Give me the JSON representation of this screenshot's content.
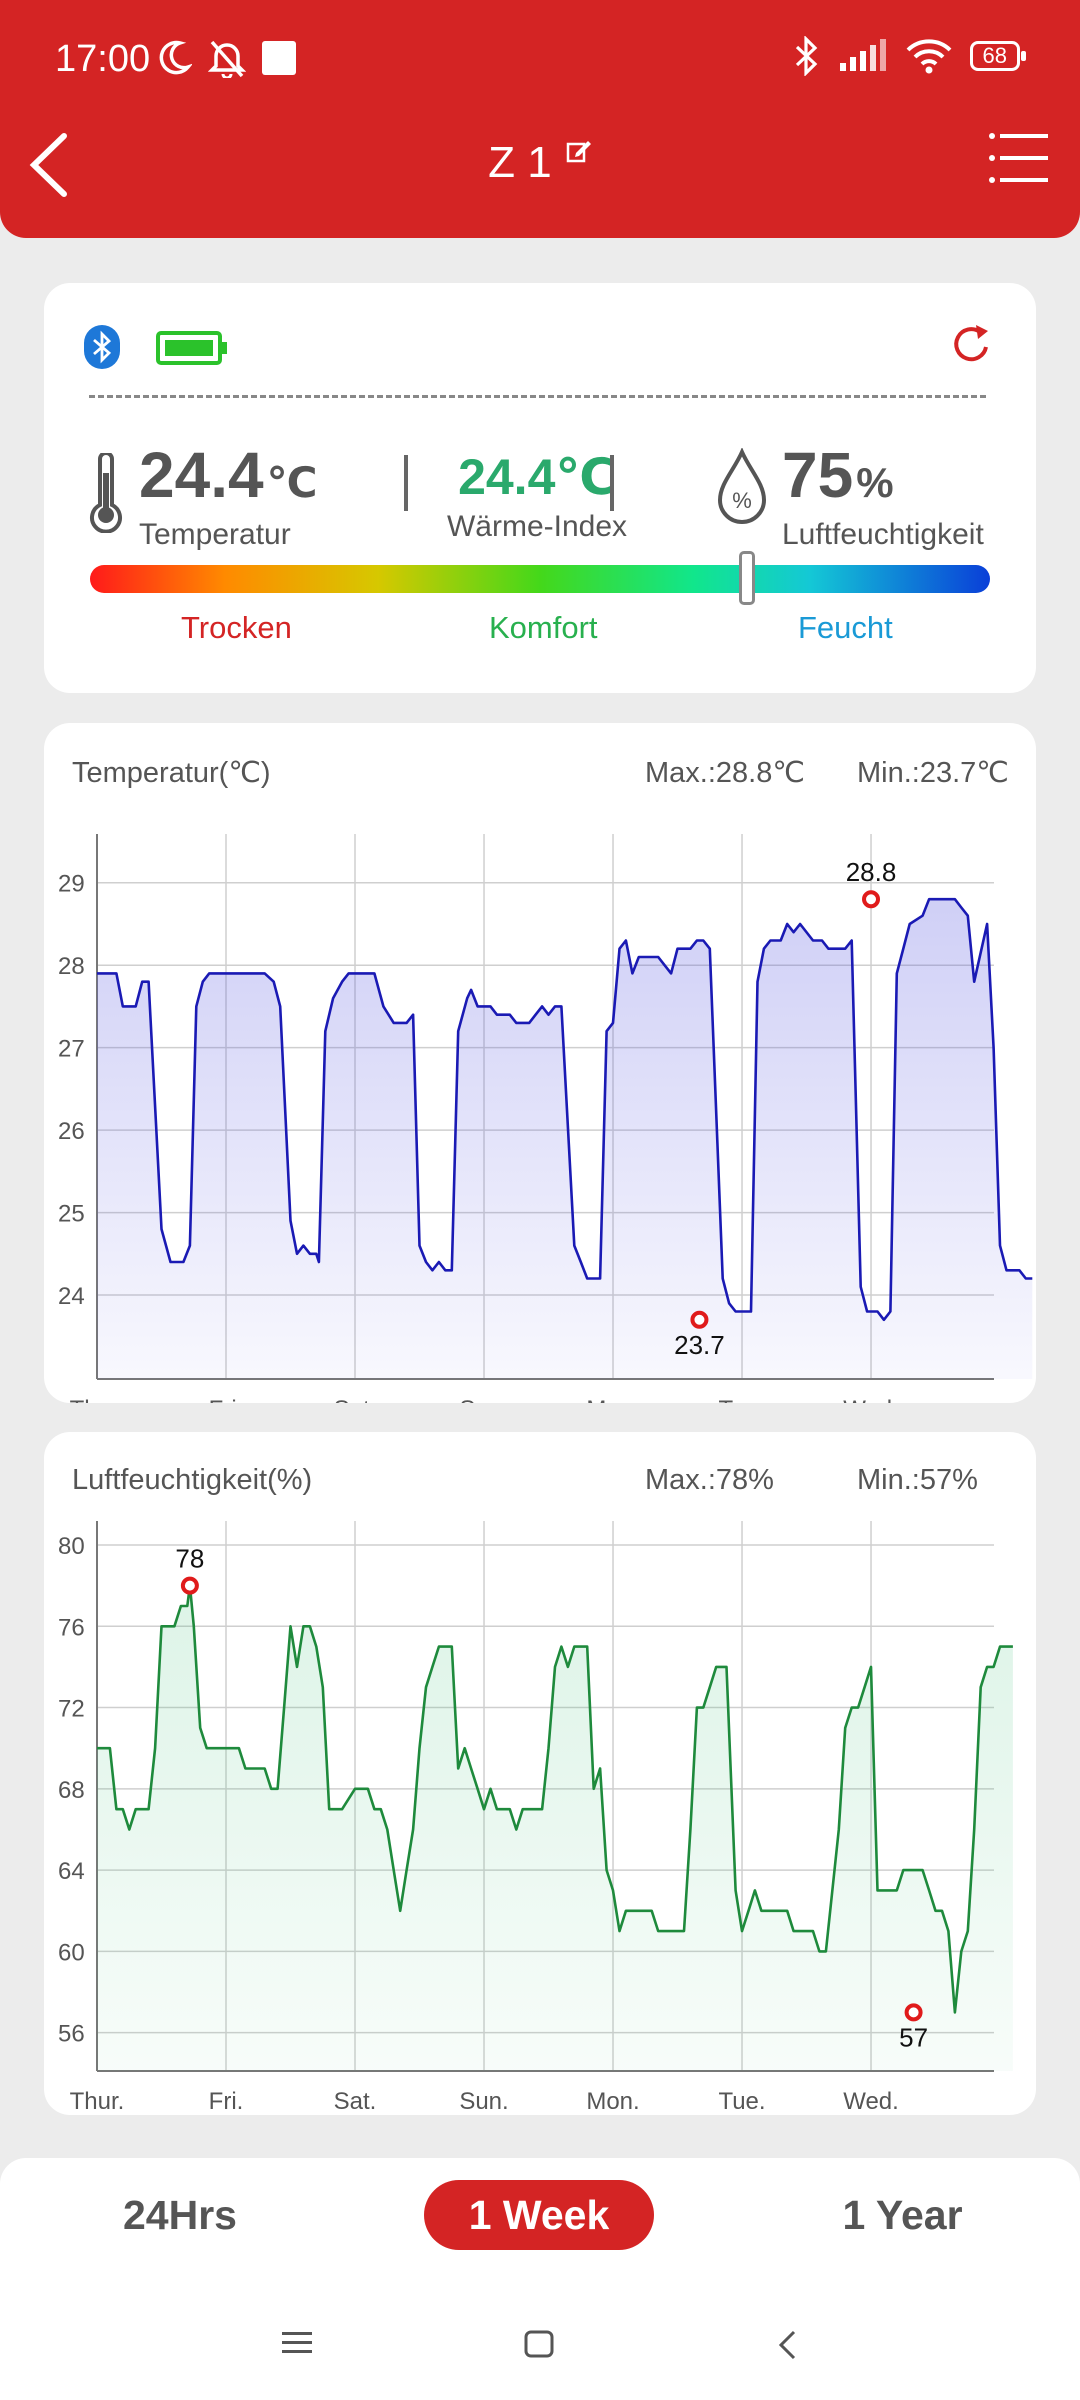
{
  "status_bar": {
    "time": "17:00",
    "battery": "68"
  },
  "header": {
    "title": "Z 1"
  },
  "current": {
    "temperature": "24.4",
    "temperature_unit": "℃",
    "temperature_label": "Temperatur",
    "heat_index": "24.4℃",
    "heat_index_label": "Wärme-Index",
    "humidity": "75",
    "humidity_unit": "%",
    "humidity_label": "Luftfeuchtigkeit",
    "comfort_level_fraction": 0.73,
    "zones": {
      "dry": "Trocken",
      "comfort": "Komfort",
      "wet": "Feucht"
    }
  },
  "colors": {
    "accent": "#d42424",
    "temp_line": "#1a1ab4",
    "hum_line": "#1e8a3c",
    "heat_index": "#2aa96c"
  },
  "chart_data": [
    {
      "type": "area",
      "title": "Temperatur(℃)",
      "max_label": "Max.:28.8℃",
      "min_label": "Min.:23.7℃",
      "categories": [
        "Thur.",
        "Fri.",
        "Sat.",
        "Sun.",
        "Mon.",
        "Tue.",
        "Wed."
      ],
      "y_ticks": [
        "29",
        "28",
        "27",
        "26",
        "25",
        "24"
      ],
      "ylim": [
        23.2,
        29.3
      ],
      "x_range": [
        0,
        7
      ],
      "grid": true,
      "series": [
        {
          "points": [
            [
              0,
              27.9
            ],
            [
              0.15,
              27.9
            ],
            [
              0.2,
              27.5
            ],
            [
              0.3,
              27.5
            ],
            [
              0.35,
              27.8
            ],
            [
              0.4,
              27.8
            ],
            [
              0.5,
              24.8
            ],
            [
              0.57,
              24.4
            ],
            [
              0.67,
              24.4
            ],
            [
              0.72,
              24.6
            ],
            [
              0.77,
              27.5
            ],
            [
              0.82,
              27.8
            ],
            [
              0.87,
              27.9
            ],
            [
              1.0,
              27.9
            ],
            [
              1.3,
              27.9
            ],
            [
              1.37,
              27.8
            ],
            [
              1.42,
              27.5
            ],
            [
              1.5,
              24.9
            ],
            [
              1.55,
              24.5
            ],
            [
              1.6,
              24.6
            ],
            [
              1.65,
              24.5
            ],
            [
              1.7,
              24.5
            ],
            [
              1.72,
              24.4
            ],
            [
              1.77,
              27.2
            ],
            [
              1.83,
              27.6
            ],
            [
              1.9,
              27.8
            ],
            [
              1.95,
              27.9
            ],
            [
              2.15,
              27.9
            ],
            [
              2.22,
              27.5
            ],
            [
              2.3,
              27.3
            ],
            [
              2.4,
              27.3
            ],
            [
              2.45,
              27.4
            ],
            [
              2.5,
              24.6
            ],
            [
              2.55,
              24.4
            ],
            [
              2.6,
              24.3
            ],
            [
              2.65,
              24.4
            ],
            [
              2.7,
              24.3
            ],
            [
              2.75,
              24.3
            ],
            [
              2.8,
              27.2
            ],
            [
              2.87,
              27.6
            ],
            [
              2.9,
              27.7
            ],
            [
              2.95,
              27.5
            ],
            [
              3.05,
              27.5
            ],
            [
              3.1,
              27.4
            ],
            [
              3.2,
              27.4
            ],
            [
              3.25,
              27.3
            ],
            [
              3.35,
              27.3
            ],
            [
              3.4,
              27.4
            ],
            [
              3.45,
              27.5
            ],
            [
              3.5,
              27.4
            ],
            [
              3.55,
              27.5
            ],
            [
              3.6,
              27.5
            ],
            [
              3.7,
              24.6
            ],
            [
              3.75,
              24.4
            ],
            [
              3.8,
              24.2
            ],
            [
              3.9,
              24.2
            ],
            [
              3.95,
              27.2
            ],
            [
              4.0,
              27.3
            ],
            [
              4.05,
              28.2
            ],
            [
              4.1,
              28.3
            ],
            [
              4.15,
              27.9
            ],
            [
              4.2,
              28.1
            ],
            [
              4.35,
              28.1
            ],
            [
              4.4,
              28.0
            ],
            [
              4.45,
              27.9
            ],
            [
              4.5,
              28.2
            ],
            [
              4.6,
              28.2
            ],
            [
              4.65,
              28.3
            ],
            [
              4.7,
              28.3
            ],
            [
              4.75,
              28.2
            ],
            [
              4.85,
              24.2
            ],
            [
              4.9,
              23.9
            ],
            [
              4.95,
              23.8
            ],
            [
              5.07,
              23.8
            ],
            [
              5.12,
              27.8
            ],
            [
              5.17,
              28.2
            ],
            [
              5.22,
              28.3
            ],
            [
              5.3,
              28.3
            ],
            [
              5.35,
              28.5
            ],
            [
              5.4,
              28.4
            ],
            [
              5.45,
              28.5
            ],
            [
              5.55,
              28.3
            ],
            [
              5.62,
              28.3
            ],
            [
              5.67,
              28.2
            ],
            [
              5.8,
              28.2
            ],
            [
              5.85,
              28.3
            ],
            [
              5.92,
              24.1
            ],
            [
              5.97,
              23.8
            ],
            [
              6.05,
              23.8
            ],
            [
              6.1,
              23.7
            ],
            [
              6.15,
              23.8
            ],
            [
              6.2,
              27.9
            ],
            [
              6.25,
              28.2
            ],
            [
              6.3,
              28.5
            ],
            [
              6.4,
              28.6
            ],
            [
              6.45,
              28.8
            ],
            [
              6.65,
              28.8
            ],
            [
              6.7,
              28.7
            ],
            [
              6.75,
              28.6
            ],
            [
              6.8,
              27.8
            ],
            [
              6.9,
              28.5
            ],
            [
              6.95,
              27.0
            ],
            [
              7.0,
              24.6
            ],
            [
              7.05,
              24.3
            ],
            [
              7.1,
              24.3
            ],
            [
              7.15,
              24.3
            ],
            [
              7.2,
              24.2
            ],
            [
              7.25,
              24.2
            ]
          ]
        }
      ],
      "annotations": [
        {
          "label": "28.8",
          "x": 6.0,
          "y": 28.8,
          "type": "max"
        },
        {
          "label": "23.7",
          "x": 4.67,
          "y": 23.7,
          "type": "min"
        }
      ]
    },
    {
      "type": "area",
      "title": "Luftfeuchtigkeit(%)",
      "max_label": "Max.:78%",
      "min_label": "Min.:57%",
      "categories": [
        "Thur.",
        "Fri.",
        "Sat.",
        "Sun.",
        "Mon.",
        "Tue.",
        "Wed."
      ],
      "y_ticks": [
        "80",
        "76",
        "72",
        "68",
        "64",
        "60",
        "56"
      ],
      "ylim": [
        55,
        80
      ],
      "x_range": [
        0,
        7
      ],
      "grid": true,
      "series": [
        {
          "points": [
            [
              0,
              70
            ],
            [
              0.1,
              70
            ],
            [
              0.15,
              67
            ],
            [
              0.2,
              67
            ],
            [
              0.25,
              66
            ],
            [
              0.3,
              67
            ],
            [
              0.4,
              67
            ],
            [
              0.45,
              70
            ],
            [
              0.5,
              76
            ],
            [
              0.6,
              76
            ],
            [
              0.65,
              77
            ],
            [
              0.7,
              77
            ],
            [
              0.72,
              78
            ],
            [
              0.75,
              76
            ],
            [
              0.8,
              71
            ],
            [
              0.85,
              70
            ],
            [
              1.0,
              70
            ],
            [
              1.1,
              70
            ],
            [
              1.15,
              69
            ],
            [
              1.3,
              69
            ],
            [
              1.35,
              68
            ],
            [
              1.4,
              68
            ],
            [
              1.45,
              72
            ],
            [
              1.5,
              76
            ],
            [
              1.55,
              74
            ],
            [
              1.6,
              76
            ],
            [
              1.65,
              76
            ],
            [
              1.7,
              75
            ],
            [
              1.75,
              73
            ],
            [
              1.8,
              67
            ],
            [
              1.9,
              67
            ],
            [
              2.0,
              68
            ],
            [
              2.1,
              68
            ],
            [
              2.15,
              67
            ],
            [
              2.2,
              67
            ],
            [
              2.25,
              66
            ],
            [
              2.3,
              64
            ],
            [
              2.35,
              62
            ],
            [
              2.4,
              64
            ],
            [
              2.45,
              66
            ],
            [
              2.5,
              70
            ],
            [
              2.55,
              73
            ],
            [
              2.6,
              74
            ],
            [
              2.65,
              75
            ],
            [
              2.75,
              75
            ],
            [
              2.8,
              69
            ],
            [
              2.85,
              70
            ],
            [
              2.9,
              69
            ],
            [
              2.95,
              68
            ],
            [
              3.0,
              67
            ],
            [
              3.05,
              68
            ],
            [
              3.1,
              67
            ],
            [
              3.2,
              67
            ],
            [
              3.25,
              66
            ],
            [
              3.3,
              67
            ],
            [
              3.4,
              67
            ],
            [
              3.45,
              67
            ],
            [
              3.5,
              70
            ],
            [
              3.55,
              74
            ],
            [
              3.6,
              75
            ],
            [
              3.65,
              74
            ],
            [
              3.7,
              75
            ],
            [
              3.8,
              75
            ],
            [
              3.85,
              68
            ],
            [
              3.9,
              69
            ],
            [
              3.95,
              64
            ],
            [
              4.0,
              63
            ],
            [
              4.05,
              61
            ],
            [
              4.1,
              62
            ],
            [
              4.3,
              62
            ],
            [
              4.35,
              61
            ],
            [
              4.55,
              61
            ],
            [
              4.6,
              66
            ],
            [
              4.65,
              72
            ],
            [
              4.7,
              72
            ],
            [
              4.75,
              73
            ],
            [
              4.8,
              74
            ],
            [
              4.88,
              74
            ],
            [
              4.95,
              63
            ],
            [
              5.0,
              61
            ],
            [
              5.05,
              62
            ],
            [
              5.1,
              63
            ],
            [
              5.15,
              62
            ],
            [
              5.35,
              62
            ],
            [
              5.4,
              61
            ],
            [
              5.55,
              61
            ],
            [
              5.6,
              60
            ],
            [
              5.65,
              60
            ],
            [
              5.75,
              66
            ],
            [
              5.8,
              71
            ],
            [
              5.85,
              72
            ],
            [
              5.9,
              72
            ],
            [
              5.95,
              73
            ],
            [
              6.0,
              74
            ],
            [
              6.05,
              63
            ],
            [
              6.2,
              63
            ],
            [
              6.25,
              64
            ],
            [
              6.4,
              64
            ],
            [
              6.45,
              63
            ],
            [
              6.5,
              62
            ],
            [
              6.55,
              62
            ],
            [
              6.6,
              61
            ],
            [
              6.65,
              57
            ],
            [
              6.7,
              60
            ],
            [
              6.75,
              61
            ],
            [
              6.8,
              66
            ],
            [
              6.85,
              73
            ],
            [
              6.9,
              74
            ],
            [
              6.95,
              74
            ],
            [
              7.0,
              75
            ],
            [
              7.1,
              75
            ]
          ]
        }
      ],
      "annotations": [
        {
          "label": "78",
          "x": 0.72,
          "y": 78,
          "type": "max"
        },
        {
          "label": "57",
          "x": 6.33,
          "y": 57,
          "type": "min"
        }
      ]
    }
  ],
  "range_tabs": [
    {
      "label": "24Hrs",
      "selected": false
    },
    {
      "label": "1 Week",
      "selected": true
    },
    {
      "label": "1 Year",
      "selected": false
    }
  ],
  "icons": [
    "moon-icon",
    "mute-bell-icon",
    "bluetooth-icon",
    "signal-icon",
    "wifi-icon",
    "battery-icon",
    "back-icon",
    "edit-icon",
    "menu-icon",
    "refresh-icon",
    "thermometer-icon",
    "humidity-drop-icon"
  ]
}
